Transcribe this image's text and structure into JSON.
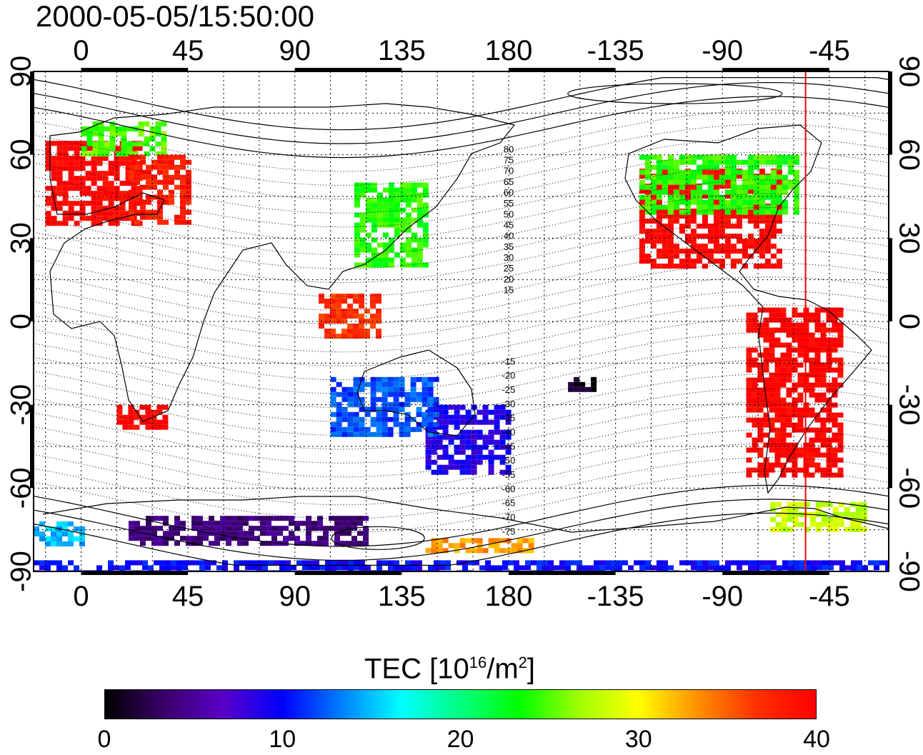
{
  "title": "2000-05-05/15:50:00",
  "map": {
    "projection": "equirectangular",
    "lon_range": [
      -20,
      340
    ],
    "lat_range": [
      -90,
      90
    ],
    "grid": true,
    "top_axis_labels": [
      "0",
      "45",
      "90",
      "135",
      "180",
      "-135",
      "-90",
      "-45"
    ],
    "bottom_axis_labels": [
      "0",
      "45",
      "90",
      "135",
      "180",
      "-135",
      "-90",
      "-45"
    ],
    "left_axis_labels": [
      "90",
      "60",
      "30",
      "0",
      "-30",
      "-60",
      "-90"
    ],
    "right_axis_labels": [
      "90",
      "60",
      "30",
      "0",
      "-30",
      "-60",
      "-90"
    ],
    "contour_labels_north": [
      "80",
      "75",
      "70",
      "65",
      "60",
      "55",
      "50",
      "45",
      "40",
      "35",
      "30",
      "25",
      "20",
      "15"
    ],
    "contour_labels_south": [
      "-15",
      "-20",
      "-25",
      "-30",
      "-35",
      "-40",
      "-45",
      "-50",
      "-55",
      "-60",
      "-65",
      "-70",
      "-75"
    ],
    "terminator_color": "#ff0000",
    "terminator_lon": 305
  },
  "colorbar": {
    "title_main": "TEC  [10",
    "title_sup1": "16",
    "title_mid": "/m",
    "title_sup2": "2",
    "title_end": "]",
    "min": 0,
    "max": 40,
    "tick_labels": [
      "0",
      "10",
      "20",
      "30",
      "40"
    ],
    "colors": [
      "#000000",
      "#3a006a",
      "#5a00c8",
      "#0000ff",
      "#0080ff",
      "#00ffff",
      "#00ff80",
      "#00ff00",
      "#a0ff00",
      "#ffff00",
      "#ff9000",
      "#ff3000",
      "#ff0000"
    ]
  },
  "tec_regions": [
    {
      "lon_range": [
        -15,
        25
      ],
      "lat_range": [
        35,
        65
      ],
      "tec": 40
    },
    {
      "lon_range": [
        0,
        35
      ],
      "lat_range": [
        60,
        72
      ],
      "tec": 25
    },
    {
      "lon_range": [
        20,
        45
      ],
      "lat_range": [
        35,
        60
      ],
      "tec": 38
    },
    {
      "lon_range": [
        15,
        35
      ],
      "lat_range": [
        -38,
        -30
      ],
      "tec": 40
    },
    {
      "lon_range": [
        100,
        125
      ],
      "lat_range": [
        -5,
        10
      ],
      "tec": 37
    },
    {
      "lon_range": [
        115,
        145
      ],
      "lat_range": [
        20,
        50
      ],
      "tec": 24
    },
    {
      "lon_range": [
        145,
        180
      ],
      "lat_range": [
        -55,
        -30
      ],
      "tec": 9
    },
    {
      "lon_range": [
        105,
        150
      ],
      "lat_range": [
        -40,
        -20
      ],
      "tec": 12
    },
    {
      "lon_range": [
        235,
        295
      ],
      "lat_range": [
        20,
        55
      ],
      "tec": 40
    },
    {
      "lon_range": [
        235,
        300
      ],
      "lat_range": [
        40,
        60
      ],
      "tec": 24
    },
    {
      "lon_range": [
        280,
        320
      ],
      "lat_range": [
        -55,
        5
      ],
      "tec": 40
    },
    {
      "lon_range": [
        290,
        330
      ],
      "lat_range": [
        -75,
        -65
      ],
      "tec": 28
    },
    {
      "lon_range": [
        20,
        120
      ],
      "lat_range": [
        -80,
        -70
      ],
      "tec": 4
    },
    {
      "lon_range": [
        -20,
        0
      ],
      "lat_range": [
        -80,
        -72
      ],
      "tec": 15
    },
    {
      "lon_range": [
        145,
        190
      ],
      "lat_range": [
        -82,
        -78
      ],
      "tec": 33
    },
    {
      "lon_range": [
        -20,
        340
      ],
      "lat_range": [
        -90,
        -86
      ],
      "tec": 10
    },
    {
      "lon_range": [
        205,
        215
      ],
      "lat_range": [
        -25,
        -20
      ],
      "tec": 1
    }
  ]
}
